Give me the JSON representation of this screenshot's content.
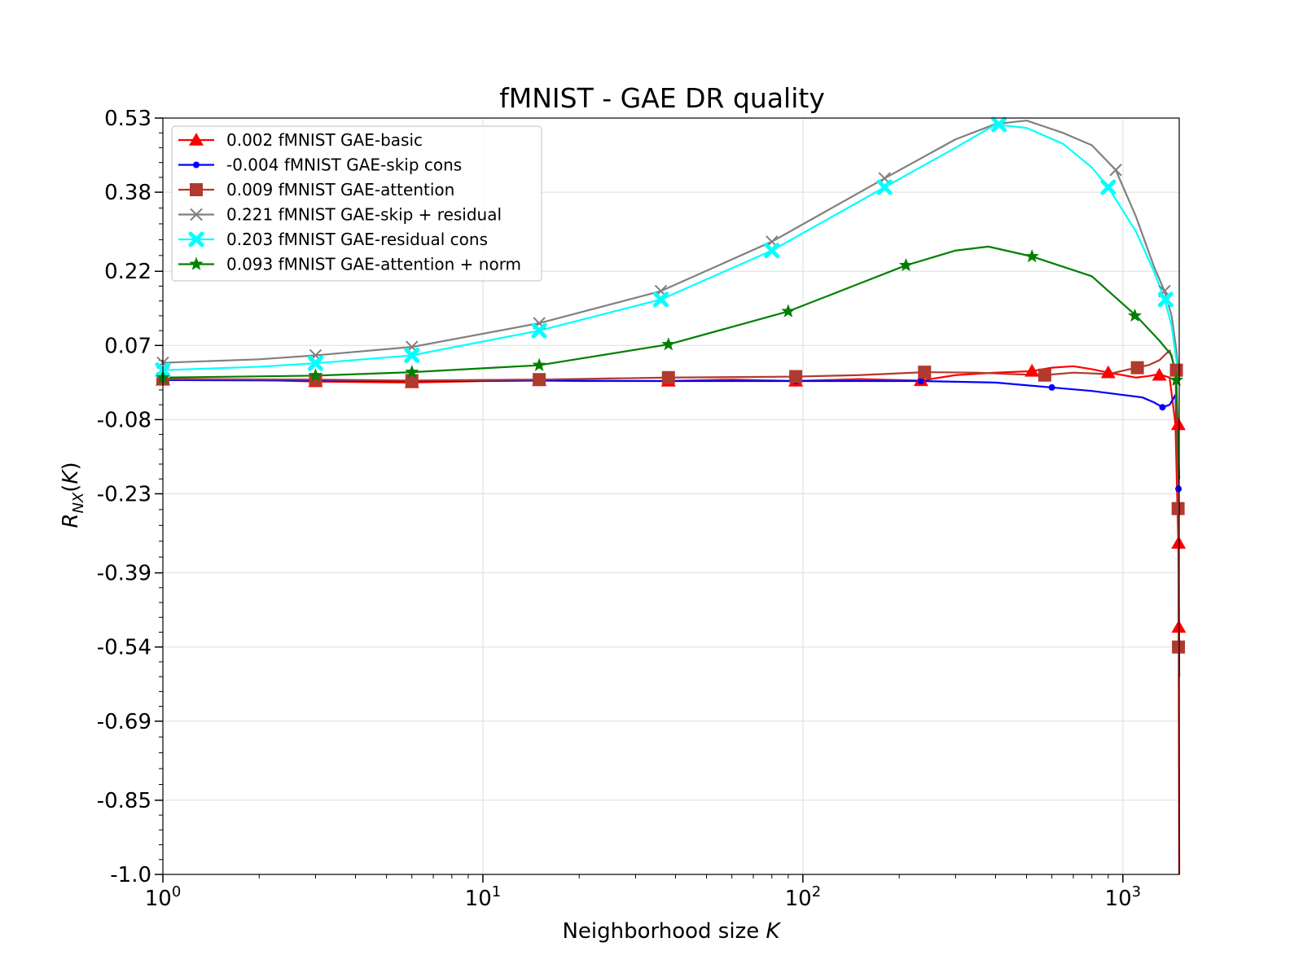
{
  "chart_data": {
    "type": "line",
    "title": "fMNIST - GAE DR quality",
    "xlabel": "Neighborhood size K",
    "xlabel_plain": "Neighborhood size",
    "xlabel_var": "K",
    "ylabel": "R_NX(K)",
    "x_scale": "log",
    "xlim": [
      1,
      1500
    ],
    "ylim": [
      -1.0,
      0.53
    ],
    "grid": true,
    "legend_position": "top-left",
    "x_ticks": [
      {
        "value": 1,
        "base": "10",
        "exp": "0"
      },
      {
        "value": 10,
        "base": "10",
        "exp": "1"
      },
      {
        "value": 100,
        "base": "10",
        "exp": "2"
      },
      {
        "value": 1000,
        "base": "10",
        "exp": "3"
      }
    ],
    "y_ticks": [
      {
        "value": 0.53,
        "label": "0.53"
      },
      {
        "value": 0.38,
        "label": "0.38"
      },
      {
        "value": 0.22,
        "label": "0.22"
      },
      {
        "value": 0.07,
        "label": "0.07"
      },
      {
        "value": -0.08,
        "label": "-0.08"
      },
      {
        "value": -0.23,
        "label": "-0.23"
      },
      {
        "value": -0.39,
        "label": "-0.39"
      },
      {
        "value": -0.54,
        "label": "-0.54"
      },
      {
        "value": -0.69,
        "label": "-0.69"
      },
      {
        "value": -0.85,
        "label": "-0.85"
      },
      {
        "value": -1.0,
        "label": "-1.0"
      }
    ],
    "series": [
      {
        "name": "0.002 fMNIST GAE-basic",
        "color": "#ff0000",
        "marker": "triangle",
        "x": [
          1,
          2,
          3,
          6,
          10,
          15,
          20,
          38,
          60,
          95,
          150,
          234,
          300,
          400,
          520,
          600,
          700,
          800,
          900,
          1000,
          1100,
          1200,
          1300,
          1400,
          1460,
          1490,
          1495,
          1500
        ],
        "y": [
          0.0,
          0.0,
          -0.003,
          -0.005,
          -0.002,
          -0.001,
          -0.002,
          -0.002,
          0.001,
          -0.002,
          0.002,
          -0.001,
          0.01,
          0.015,
          0.018,
          0.025,
          0.028,
          0.022,
          0.015,
          0.01,
          0.005,
          0.008,
          0.012,
          0.005,
          -0.09,
          -0.33,
          -0.55,
          -1.0
        ],
        "markers_x": [
          1,
          3,
          6,
          15,
          38,
          95,
          234,
          520,
          900,
          1300,
          1490,
          1493,
          1495
        ],
        "markers_y": [
          0.0,
          -0.003,
          -0.005,
          -0.001,
          -0.002,
          -0.002,
          -0.001,
          0.018,
          0.015,
          0.01,
          -0.09,
          -0.33,
          -0.5
        ]
      },
      {
        "name": "-0.004 fMNIST GAE-skip cons",
        "color": "#0000ff",
        "marker": "circle",
        "x": [
          1,
          3,
          6,
          15,
          38,
          95,
          234,
          400,
          600,
          800,
          1000,
          1150,
          1250,
          1330,
          1400,
          1460,
          1490,
          1495,
          1500
        ],
        "y": [
          0.0,
          -0.001,
          -0.002,
          -0.001,
          -0.002,
          -0.002,
          -0.002,
          -0.005,
          -0.015,
          -0.022,
          -0.03,
          -0.035,
          -0.045,
          -0.055,
          -0.05,
          -0.03,
          -0.2,
          -0.45,
          -0.6
        ],
        "markers_x": [
          1,
          3,
          6,
          15,
          38,
          95,
          234,
          600,
          1330,
          1492
        ],
        "markers_y": [
          0.0,
          -0.001,
          -0.002,
          -0.001,
          -0.002,
          -0.002,
          -0.002,
          -0.015,
          -0.055,
          -0.22
        ]
      },
      {
        "name": "0.009 fMNIST GAE-attention",
        "color": "#b03a2e",
        "marker": "square",
        "x": [
          1,
          3,
          6,
          15,
          38,
          95,
          150,
          240,
          350,
          450,
          570,
          700,
          900,
          1100,
          1200,
          1300,
          1400,
          1460,
          1490,
          1495,
          1500
        ],
        "y": [
          0.002,
          0.001,
          -0.001,
          0.001,
          0.005,
          0.007,
          0.01,
          0.016,
          0.015,
          0.012,
          0.01,
          0.015,
          0.012,
          0.025,
          0.03,
          0.04,
          0.06,
          0.02,
          -0.26,
          -0.54,
          -0.6
        ],
        "markers_x": [
          1,
          3,
          6,
          15,
          38,
          95,
          240,
          570,
          1110,
          1470,
          1488,
          1492
        ],
        "markers_y": [
          0.002,
          0.001,
          -0.001,
          0.001,
          0.005,
          0.007,
          0.016,
          0.01,
          0.025,
          0.02,
          -0.26,
          -0.54
        ]
      },
      {
        "name": "0.221 fMNIST GAE-skip + residual",
        "color": "#808080",
        "marker": "x",
        "x": [
          1,
          2,
          3,
          6,
          15,
          36,
          80,
          180,
          300,
          400,
          500,
          650,
          800,
          950,
          1100,
          1250,
          1350,
          1420,
          1470,
          1500
        ],
        "y": [
          0.035,
          0.042,
          0.05,
          0.067,
          0.115,
          0.18,
          0.28,
          0.408,
          0.487,
          0.518,
          0.525,
          0.5,
          0.475,
          0.425,
          0.33,
          0.23,
          0.18,
          0.13,
          0.06,
          0.0
        ],
        "markers_x": [
          1,
          3,
          6,
          15,
          36,
          80,
          180,
          950,
          1350
        ],
        "markers_y": [
          0.035,
          0.05,
          0.067,
          0.115,
          0.18,
          0.28,
          0.408,
          0.425,
          0.18
        ]
      },
      {
        "name": "0.203 fMNIST GAE-residual cons",
        "color": "#00ffff",
        "marker": "xfilled",
        "x": [
          1,
          2,
          3,
          6,
          15,
          36,
          80,
          180,
          300,
          400,
          500,
          650,
          800,
          900,
          1100,
          1250,
          1350,
          1420,
          1470,
          1500
        ],
        "y": [
          0.02,
          0.027,
          0.034,
          0.05,
          0.1,
          0.163,
          0.262,
          0.39,
          0.47,
          0.517,
          0.51,
          0.478,
          0.43,
          0.39,
          0.3,
          0.22,
          0.163,
          0.11,
          0.04,
          0.0
        ],
        "markers_x": [
          1,
          3,
          6,
          15,
          36,
          80,
          180,
          410,
          900,
          1360
        ],
        "markers_y": [
          0.02,
          0.034,
          0.05,
          0.1,
          0.163,
          0.262,
          0.39,
          0.517,
          0.39,
          0.163
        ]
      },
      {
        "name": "0.093 fMNIST GAE-attention + norm",
        "color": "#008000",
        "marker": "star",
        "x": [
          1,
          3,
          6,
          15,
          38,
          90,
          150,
          210,
          300,
          380,
          520,
          800,
          1100,
          1300,
          1420,
          1470,
          1500
        ],
        "y": [
          0.005,
          0.009,
          0.016,
          0.03,
          0.072,
          0.139,
          0.195,
          0.232,
          0.262,
          0.27,
          0.25,
          0.21,
          0.13,
          0.08,
          0.05,
          0.0,
          -0.2
        ],
        "markers_x": [
          1,
          3,
          6,
          15,
          38,
          90,
          210,
          520,
          1090,
          1470
        ],
        "markers_y": [
          0.005,
          0.009,
          0.016,
          0.03,
          0.072,
          0.139,
          0.232,
          0.25,
          0.13,
          0.0
        ]
      }
    ]
  }
}
